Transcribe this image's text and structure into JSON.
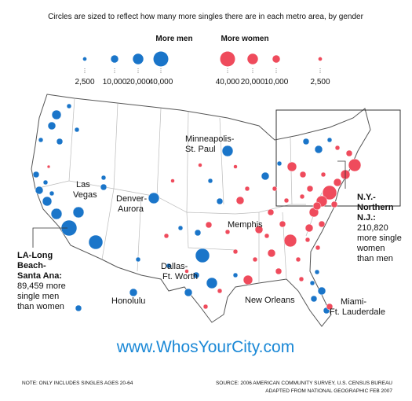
{
  "header": {
    "subtitle": "Circles are sized to reflect how many more singles there are in each metro area, by gender"
  },
  "legend": {
    "men": {
      "title": "More men",
      "color": "#1a75c9",
      "values": [
        {
          "value": 2500,
          "label": "2,500"
        },
        {
          "value": 10000,
          "label": "10,000"
        },
        {
          "value": 20000,
          "label": "20,000"
        },
        {
          "value": 40000,
          "label": "40,000"
        }
      ]
    },
    "women": {
      "title": "More women",
      "color": "#ef4b5c",
      "values": [
        {
          "value": 40000,
          "label": "40,000"
        },
        {
          "value": 20000,
          "label": "20,000"
        },
        {
          "value": 10000,
          "label": "10,000"
        },
        {
          "value": 2500,
          "label": "2,500"
        }
      ]
    }
  },
  "labels": {
    "minneapolis": [
      "Minneapolis-",
      "St. Paul"
    ],
    "las_vegas": [
      "Las",
      "Vegas"
    ],
    "denver": [
      "Denver-",
      "Aurora"
    ],
    "memphis": [
      "Memphis"
    ],
    "dallas": [
      "Dallas-",
      "Ft. Worth"
    ],
    "honolulu": [
      "Honolulu"
    ],
    "new_orleans": [
      "New Orleans"
    ],
    "miami": [
      "Miami-",
      "Ft. Lauderdale"
    ]
  },
  "callouts": {
    "la": {
      "title": [
        "LA-Long",
        "Beach-",
        "Santa Ana:"
      ],
      "body": [
        "89,459 more",
        "single men",
        "than women"
      ]
    },
    "ny": {
      "title": [
        "N.Y.-",
        "Northern",
        "N.J.:"
      ],
      "body": [
        "210,820",
        "more single",
        "women",
        "than men"
      ]
    }
  },
  "footer": {
    "url": "www.WhosYourCity.com",
    "note": "NOTE: ONLY INCLUDES SINGLES AGES 20-64",
    "source": "SOURCE: 2006 AMERICAN COMMUNITY SURVEY, U.S. CENSUS BUREAU",
    "adapted": "ADAPTED FROM NATIONAL GEOGRAPHIC FEB 2007"
  }
}
